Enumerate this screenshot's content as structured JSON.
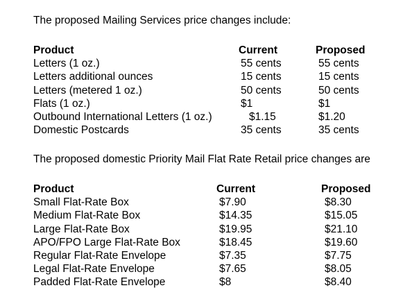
{
  "intro_mailing": "The proposed Mailing Services price changes include:",
  "mailing_table": {
    "headers": {
      "product": "Product",
      "current": "Current",
      "proposed": "Proposed"
    },
    "rows": [
      {
        "product": "Letters (1 oz.)",
        "current": "55 cents",
        "proposed": "55 cents"
      },
      {
        "product": "Letters additional ounces",
        "current": "15 cents",
        "proposed": "15 cents"
      },
      {
        "product": "Letters (metered 1 oz.)",
        "current": "50 cents",
        "proposed": "50 cents"
      },
      {
        "product": "Flats (1 oz.)",
        "current": "$1",
        "proposed": "$1"
      },
      {
        "product": "Outbound International Letters (1 oz.)",
        "current": "$1.15",
        "proposed": "$1.20"
      },
      {
        "product": "Domestic Postcards",
        "current": "35 cents",
        "proposed": "35 cents"
      }
    ]
  },
  "intro_priority": "The proposed domestic Priority Mail Flat Rate Retail price changes are",
  "priority_table": {
    "headers": {
      "product": "Product",
      "current": "Current",
      "proposed": "Proposed"
    },
    "rows": [
      {
        "product": "Small Flat-Rate Box",
        "current": "$7.90",
        "proposed": "$8.30"
      },
      {
        "product": "Medium Flat-Rate Box",
        "current": "$14.35",
        "proposed": "$15.05"
      },
      {
        "product": "Large Flat-Rate Box",
        "current": "$19.95",
        "proposed": "$21.10"
      },
      {
        "product": "APO/FPO Large Flat-Rate Box",
        "current": "$18.45",
        "proposed": "$19.60"
      },
      {
        "product": "Regular Flat-Rate Envelope",
        "current": "$7.35",
        "proposed": "$7.75"
      },
      {
        "product": "Legal Flat-Rate Envelope",
        "current": "$7.65",
        "proposed": "$8.05"
      },
      {
        "product": "Padded Flat-Rate Envelope",
        "current": "$8",
        "proposed": "$8.40"
      }
    ]
  }
}
